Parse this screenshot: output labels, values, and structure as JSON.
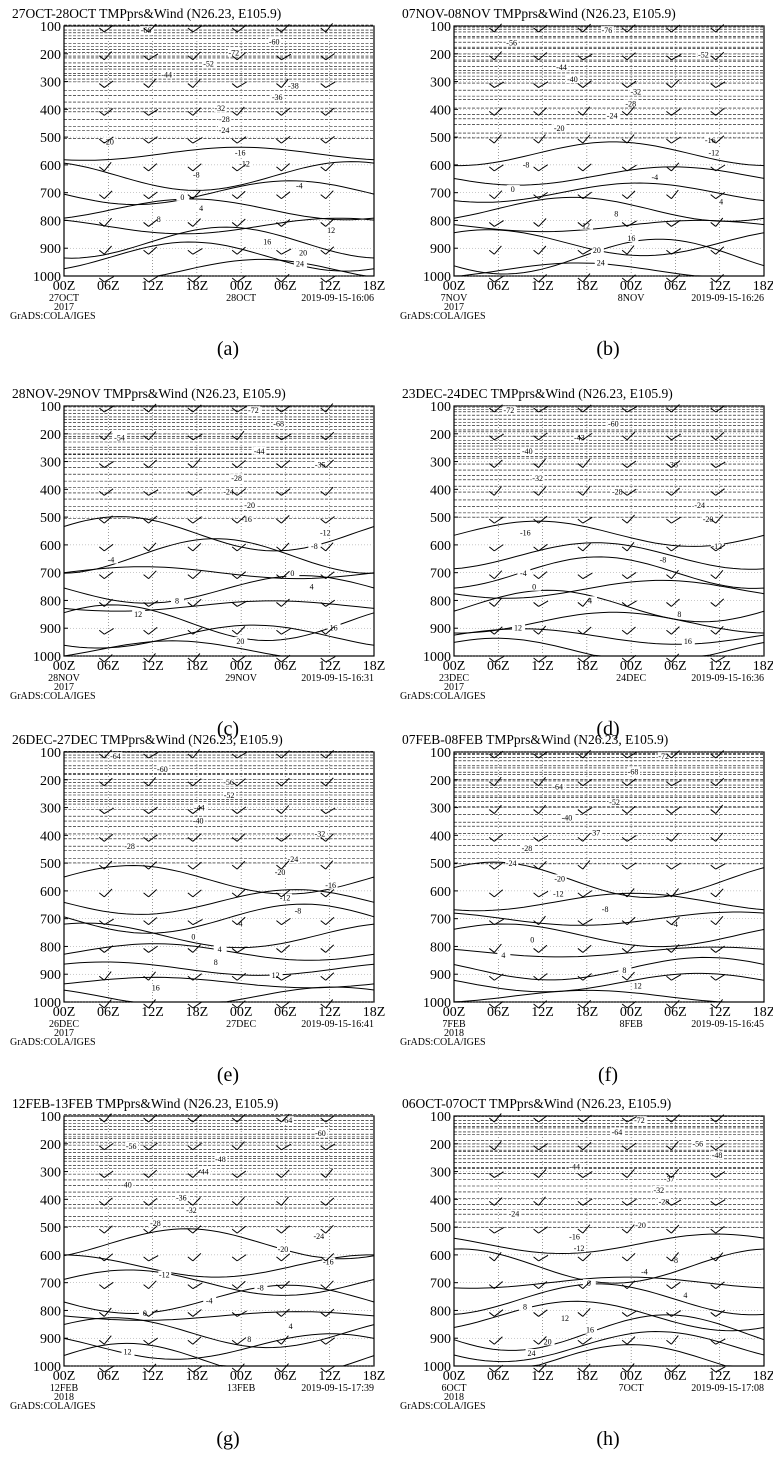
{
  "figure": {
    "y_ticks": [
      "100",
      "200",
      "300",
      "400",
      "500",
      "600",
      "700",
      "800",
      "900",
      "1000"
    ],
    "x_ticks": [
      "00Z",
      "06Z",
      "12Z",
      "18Z",
      "00Z",
      "06Z",
      "12Z",
      "18Z"
    ],
    "credit": "GrADS:COLA/IGES"
  },
  "chart_data": [
    {
      "type": "contour",
      "panel": "(a)",
      "title": "27OCT-28OCT TMPprs&Wind (N26.23, E105.9)",
      "date_start": "27OCT",
      "date_end": "28OCT",
      "year": "2017",
      "timestamp": "2019-09-15-16:06",
      "y_levels": [
        100,
        200,
        300,
        400,
        500,
        600,
        700,
        800,
        900,
        1000
      ],
      "y_range": [
        100,
        1000
      ],
      "y_inverted": true,
      "contour_labels": [
        "-66",
        "-60",
        "-72",
        "-52",
        "-44",
        "-38",
        "-36",
        "-32",
        "-28",
        "-24",
        "-20",
        "-16",
        "-12",
        "-8",
        "-4",
        "0",
        "4",
        "8",
        "12",
        "16",
        "20",
        "24"
      ]
    },
    {
      "type": "contour",
      "panel": "(b)",
      "title": "07NOV-08NOV TMPprs&Wind (N26.23, E105.9)",
      "date_start": "7NOV",
      "date_end": "8NOV",
      "year": "2017",
      "timestamp": "2019-09-15-16:26",
      "y_levels": [
        100,
        200,
        300,
        400,
        500,
        600,
        700,
        800,
        900,
        1000
      ],
      "y_range": [
        100,
        1000
      ],
      "y_inverted": true,
      "contour_labels": [
        "-76",
        "-56",
        "-52",
        "-44",
        "-40",
        "-32",
        "-28",
        "-24",
        "-20",
        "-16",
        "-12",
        "-8",
        "-4",
        "0",
        "4",
        "8",
        "12",
        "16",
        "20",
        "24"
      ]
    },
    {
      "type": "contour",
      "panel": "(c)",
      "title": "28NOV-29NOV TMPprs&Wind (N26.23, E105.9)",
      "date_start": "28NOV",
      "date_end": "29NOV",
      "year": "2017",
      "timestamp": "2019-09-15-16:31",
      "y_levels": [
        100,
        200,
        300,
        400,
        500,
        600,
        700,
        800,
        900,
        1000
      ],
      "y_range": [
        100,
        1000
      ],
      "y_inverted": true,
      "contour_labels": [
        "-72",
        "-68",
        "-54",
        "-44",
        "-35",
        "-28",
        "-24",
        "-20",
        "-16",
        "-12",
        "-8",
        "-4",
        "0",
        "4",
        "8",
        "12",
        "16",
        "20"
      ]
    },
    {
      "type": "contour",
      "panel": "(d)",
      "title": "23DEC-24DEC TMPprs&Wind (N26.23, E105.9)",
      "date_start": "23DEC",
      "date_end": "24DEC",
      "year": "2017",
      "timestamp": "2019-09-15-16:36",
      "y_levels": [
        100,
        200,
        300,
        400,
        500,
        600,
        700,
        800,
        900,
        1000
      ],
      "y_range": [
        100,
        1000
      ],
      "y_inverted": true,
      "contour_labels": [
        "-72",
        "-60",
        "-43",
        "-40",
        "-36",
        "-32",
        "-28",
        "-24",
        "-20",
        "-16",
        "-12",
        "-8",
        "-4",
        "0",
        "4",
        "8",
        "12",
        "16"
      ]
    },
    {
      "type": "contour",
      "panel": "(e)",
      "title": "26DEC-27DEC TMPprs&Wind (N26.23, E105.9)",
      "date_start": "26DEC",
      "date_end": "27DEC",
      "year": "2017",
      "timestamp": "2019-09-15-16:41",
      "y_levels": [
        100,
        200,
        300,
        400,
        500,
        600,
        700,
        800,
        900,
        1000
      ],
      "y_range": [
        100,
        1000
      ],
      "y_inverted": true,
      "contour_labels": [
        "-64",
        "-60",
        "-56",
        "-52",
        "-44",
        "-40",
        "-32",
        "-28",
        "-24",
        "-20",
        "-16",
        "-12",
        "-8",
        "-4",
        "0",
        "4",
        "8",
        "12",
        "16"
      ]
    },
    {
      "type": "contour",
      "panel": "(f)",
      "title": "07FEB-08FEB TMPprs&Wind (N26.23, E105.9)",
      "date_start": "7FEB",
      "date_end": "8FEB",
      "year": "2018",
      "timestamp": "2019-09-15-16:45",
      "y_levels": [
        100,
        200,
        300,
        400,
        500,
        600,
        700,
        800,
        900,
        1000
      ],
      "y_range": [
        100,
        1000
      ],
      "y_inverted": true,
      "contour_labels": [
        "-72",
        "-68",
        "-64",
        "-52",
        "-40",
        "-37",
        "-28",
        "-24",
        "-20",
        "-12",
        "-8",
        "-4",
        "0",
        "4",
        "8",
        "12"
      ]
    },
    {
      "type": "contour",
      "panel": "(g)",
      "title": "12FEB-13FEB TMPprs&Wind (N26.23, E105.9)",
      "date_start": "12FEB",
      "date_end": "13FEB",
      "year": "2018",
      "timestamp": "2019-09-15-17:39",
      "y_levels": [
        100,
        200,
        300,
        400,
        500,
        600,
        700,
        800,
        900,
        1000
      ],
      "y_range": [
        100,
        1000
      ],
      "y_inverted": true,
      "contour_labels": [
        "-64",
        "-60",
        "-56",
        "-48",
        "-44",
        "-40",
        "-36",
        "-32",
        "-28",
        "-24",
        "-20",
        "-16",
        "-12",
        "-8",
        "-4",
        "0",
        "4",
        "8",
        "12"
      ]
    },
    {
      "type": "contour",
      "panel": "(h)",
      "title": "06OCT-07OCT TMPprs&Wind (N26.23, E105.9)",
      "date_start": "6OCT",
      "date_end": "7OCT",
      "year": "2018",
      "timestamp": "2019-09-15-17:08",
      "y_levels": [
        100,
        200,
        300,
        400,
        500,
        600,
        700,
        800,
        900,
        1000
      ],
      "y_range": [
        100,
        1000
      ],
      "y_inverted": true,
      "contour_labels": [
        "-72",
        "-64",
        "-56",
        "-48",
        "-44",
        "-37",
        "-32",
        "-28",
        "-24",
        "-20",
        "-16",
        "-12",
        "-8",
        "-4",
        "0",
        "4",
        "8",
        "12",
        "16",
        "20",
        "24"
      ]
    }
  ]
}
